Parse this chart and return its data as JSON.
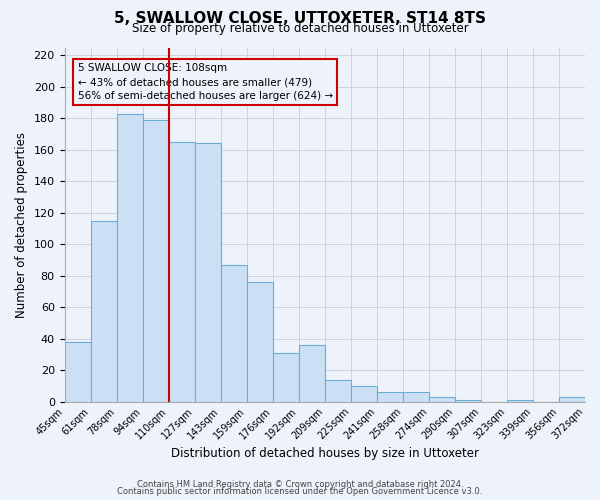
{
  "title": "5, SWALLOW CLOSE, UTTOXETER, ST14 8TS",
  "subtitle": "Size of property relative to detached houses in Uttoxeter",
  "xlabel": "Distribution of detached houses by size in Uttoxeter",
  "ylabel": "Number of detached properties",
  "bin_labels": [
    "45sqm",
    "61sqm",
    "78sqm",
    "94sqm",
    "110sqm",
    "127sqm",
    "143sqm",
    "159sqm",
    "176sqm",
    "192sqm",
    "209sqm",
    "225sqm",
    "241sqm",
    "258sqm",
    "274sqm",
    "290sqm",
    "307sqm",
    "323sqm",
    "339sqm",
    "356sqm",
    "372sqm"
  ],
  "bar_values": [
    38,
    115,
    183,
    179,
    165,
    164,
    87,
    76,
    31,
    36,
    14,
    10,
    6,
    6,
    3,
    1,
    0,
    1,
    0,
    3
  ],
  "bar_color": "#cce0f5",
  "bar_edge_color": "#6aaed6",
  "property_line_x": 4,
  "property_line_color": "#cc0000",
  "ylim": [
    0,
    225
  ],
  "yticks": [
    0,
    20,
    40,
    60,
    80,
    100,
    120,
    140,
    160,
    180,
    200,
    220
  ],
  "annotation_title": "5 SWALLOW CLOSE: 108sqm",
  "annotation_line1": "← 43% of detached houses are smaller (479)",
  "annotation_line2": "56% of semi-detached houses are larger (624) →",
  "annotation_box_color": "#cc0000",
  "footer_line1": "Contains HM Land Registry data © Crown copyright and database right 2024.",
  "footer_line2": "Contains public sector information licensed under the Open Government Licence v3.0.",
  "background_color": "#eef2fa",
  "grid_color": "#c8d4e8"
}
